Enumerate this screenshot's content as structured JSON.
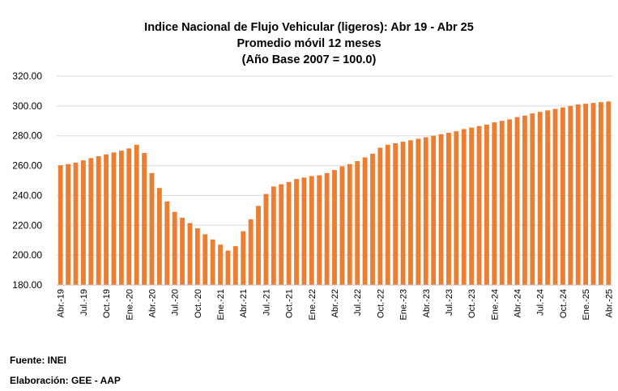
{
  "chart_data": {
    "type": "bar",
    "title": [
      "Indice Nacional de Flujo Vehicular (ligeros): Abr 19 - Abr 25",
      "Promedio móvil 12 meses",
      "(Año Base 2007 = 100.0)"
    ],
    "xlabel": "",
    "ylabel": "",
    "ylim": [
      180,
      320
    ],
    "yticks": [
      "180.00",
      "200.00",
      "220.00",
      "240.00",
      "260.00",
      "280.00",
      "300.00",
      "320.00"
    ],
    "categories": [
      "Abr.-19",
      "May.-19",
      "Jun.-19",
      "Jul.-19",
      "Ago.-19",
      "Set.-19",
      "Oct.-19",
      "Nov.-19",
      "Dic.-19",
      "Ene.-20",
      "Feb.-20",
      "Mar.-20",
      "Abr.-20",
      "May.-20",
      "Jun.-20",
      "Jul.-20",
      "Ago.-20",
      "Set.-20",
      "Oct.-20",
      "Nov.-20",
      "Dic.-20",
      "Ene.-21",
      "Feb.-21",
      "Mar.-21",
      "Abr.-21",
      "May.-21",
      "Jun.-21",
      "Jul.-21",
      "Ago.-21",
      "Set.-21",
      "Oct.-21",
      "Nov.-21",
      "Dic.-21",
      "Ene.-22",
      "Feb.-22",
      "Mar.-22",
      "Abr.-22",
      "May.-22",
      "Jun.-22",
      "Jul.-22",
      "Ago.-22",
      "Set.-22",
      "Oct.-22",
      "Nov.-22",
      "Dic.-22",
      "Ene.-23",
      "Feb.-23",
      "Mar.-23",
      "Abr.-23",
      "May.-23",
      "Jun.-23",
      "Jul.-23",
      "Ago.-23",
      "Set.-23",
      "Oct.-23",
      "Nov.-23",
      "Dic.-23",
      "Ene.-24",
      "Feb.-24",
      "Mar.-24",
      "Abr.-24",
      "May.-24",
      "Jun.-24",
      "Jul.-24",
      "Ago.-24",
      "Set.-24",
      "Oct.-24",
      "Nov.-24",
      "Dic.-24",
      "Ene.-25",
      "Feb.-25",
      "Mar.-25",
      "Abr.-25"
    ],
    "xtick_labels": [
      "Abr.-19",
      "Jul.-19",
      "Oct.-19",
      "Ene.-20",
      "Abr.-20",
      "Jul.-20",
      "Oct.-20",
      "Ene.-21",
      "Abr.-21",
      "Jul.-21",
      "Oct.-21",
      "Ene.-22",
      "Abr.-22",
      "Jul.-22",
      "Oct.-22",
      "Ene.-23",
      "Abr.-23",
      "Jul.-23",
      "Oct.-23",
      "Ene.-24",
      "Abr.-24",
      "Jul.-24",
      "Oct.-24",
      "Ene.-25",
      "Abr.-25"
    ],
    "values": [
      260.2,
      261.0,
      262.0,
      263.5,
      265.0,
      266.3,
      267.5,
      268.8,
      270.0,
      271.5,
      274.0,
      268.5,
      255.0,
      245.0,
      236.0,
      229.0,
      225.0,
      221.5,
      218.0,
      214.0,
      210.5,
      207.0,
      203.0,
      206.0,
      216.0,
      224.0,
      233.0,
      241.0,
      246.0,
      247.5,
      249.0,
      251.0,
      252.0,
      253.0,
      253.5,
      255.0,
      257.0,
      259.5,
      261.0,
      263.0,
      265.5,
      268.0,
      272.0,
      274.0,
      275.0,
      276.0,
      277.0,
      278.0,
      279.0,
      280.0,
      281.0,
      282.0,
      283.0,
      284.5,
      285.5,
      286.5,
      287.5,
      289.0,
      290.0,
      291.0,
      292.5,
      293.5,
      295.0,
      296.0,
      297.0,
      298.0,
      299.0,
      300.0,
      301.0,
      301.5,
      302.0,
      302.5,
      303.0
    ],
    "bar_color": "#ED7D31",
    "grid_color": "#D9D9D9",
    "grid": true,
    "legend": null
  },
  "footer": {
    "source": "Fuente: INEI",
    "prepared_by": "Elaboración: GEE - AAP"
  }
}
